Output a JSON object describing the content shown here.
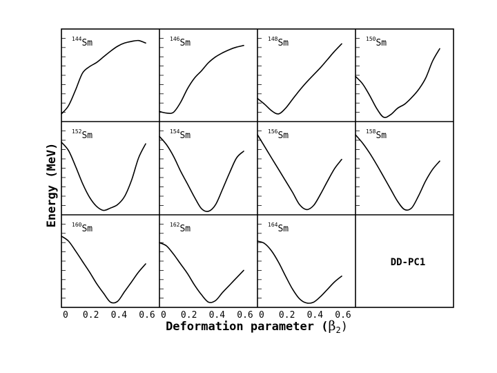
{
  "figure": {
    "ylabel": "Energy (MeV)",
    "xlabel": {
      "text": "Deformation parameter (",
      "greek": "β",
      "sub": "2",
      "close": ")"
    },
    "model_label": "DD-PC1",
    "xticks": [
      "0",
      "0.2",
      "0.4",
      "0.6"
    ]
  },
  "chart_data": {
    "type": "line",
    "grid": "3x4 small multiples, shared axes",
    "xlabel": "Deformation parameter (β2)",
    "ylabel": "Energy (MeV)",
    "xlim": [
      0,
      0.7
    ],
    "x_tick_values": [
      0,
      0.2,
      0.4,
      0.6
    ],
    "ylim": [
      0,
      10
    ],
    "y_tick_labels": "none printed",
    "panels": [
      {
        "mass": "144",
        "element": "Sm",
        "x": [
          0,
          0.05,
          0.1,
          0.15,
          0.2,
          0.25,
          0.3,
          0.35,
          0.4,
          0.45,
          0.5,
          0.55,
          0.6
        ],
        "y": [
          0.6,
          1.6,
          3.5,
          5.6,
          6.4,
          6.9,
          7.6,
          8.3,
          8.9,
          9.3,
          9.5,
          9.6,
          9.3
        ]
      },
      {
        "mass": "146",
        "element": "Sm",
        "x": [
          0,
          0.05,
          0.1,
          0.15,
          0.2,
          0.25,
          0.3,
          0.35,
          0.4,
          0.45,
          0.5,
          0.55,
          0.6
        ],
        "y": [
          0.9,
          0.7,
          0.8,
          2.0,
          3.7,
          5.0,
          5.9,
          6.9,
          7.6,
          8.1,
          8.5,
          8.8,
          9.0
        ]
      },
      {
        "mass": "148",
        "element": "Sm",
        "x": [
          0,
          0.05,
          0.1,
          0.15,
          0.2,
          0.25,
          0.3,
          0.35,
          0.4,
          0.45,
          0.5,
          0.55,
          0.6
        ],
        "y": [
          2.5,
          1.8,
          1.0,
          0.6,
          1.3,
          2.4,
          3.5,
          4.5,
          5.4,
          6.3,
          7.3,
          8.3,
          9.2
        ]
      },
      {
        "mass": "150",
        "element": "Sm",
        "x": [
          0,
          0.05,
          0.1,
          0.15,
          0.2,
          0.25,
          0.3,
          0.35,
          0.4,
          0.45,
          0.5,
          0.55,
          0.6
        ],
        "y": [
          5.2,
          4.3,
          2.9,
          1.3,
          0.2,
          0.5,
          1.3,
          1.8,
          2.6,
          3.6,
          5.0,
          7.1,
          8.6
        ]
      },
      {
        "mass": "152",
        "element": "Sm",
        "x": [
          0,
          0.05,
          0.1,
          0.15,
          0.2,
          0.25,
          0.3,
          0.35,
          0.4,
          0.45,
          0.5,
          0.55,
          0.6
        ],
        "y": [
          8.5,
          7.5,
          5.6,
          3.5,
          1.8,
          0.7,
          0.2,
          0.5,
          0.9,
          1.9,
          3.9,
          6.6,
          8.3
        ]
      },
      {
        "mass": "154",
        "element": "Sm",
        "x": [
          0,
          0.05,
          0.1,
          0.15,
          0.2,
          0.25,
          0.3,
          0.35,
          0.4,
          0.45,
          0.5,
          0.55,
          0.6
        ],
        "y": [
          9.2,
          8.2,
          6.8,
          5.0,
          3.4,
          1.8,
          0.4,
          0.1,
          0.9,
          2.8,
          4.8,
          6.6,
          7.4
        ]
      },
      {
        "mass": "156",
        "element": "Sm",
        "x": [
          0,
          0.05,
          0.1,
          0.15,
          0.2,
          0.25,
          0.3,
          0.35,
          0.4,
          0.45,
          0.5,
          0.55,
          0.6
        ],
        "y": [
          9.4,
          8.0,
          6.6,
          5.2,
          3.8,
          2.4,
          0.9,
          0.3,
          0.8,
          2.2,
          3.8,
          5.3,
          6.4
        ]
      },
      {
        "mass": "158",
        "element": "Sm",
        "x": [
          0,
          0.05,
          0.1,
          0.15,
          0.2,
          0.25,
          0.3,
          0.35,
          0.4,
          0.45,
          0.5,
          0.55,
          0.6
        ],
        "y": [
          9.4,
          8.4,
          7.2,
          5.8,
          4.3,
          2.8,
          1.3,
          0.3,
          0.5,
          2.0,
          3.8,
          5.2,
          6.2
        ]
      },
      {
        "mass": "160",
        "element": "Sm",
        "x": [
          0,
          0.05,
          0.1,
          0.15,
          0.2,
          0.25,
          0.3,
          0.35,
          0.4,
          0.45,
          0.5,
          0.55,
          0.6
        ],
        "y": [
          8.4,
          7.8,
          6.6,
          5.3,
          4.0,
          2.6,
          1.4,
          0.3,
          0.4,
          1.6,
          2.8,
          4.0,
          5.0
        ]
      },
      {
        "mass": "162",
        "element": "Sm",
        "x": [
          0,
          0.05,
          0.1,
          0.15,
          0.2,
          0.25,
          0.3,
          0.35,
          0.4,
          0.45,
          0.5,
          0.55,
          0.6
        ],
        "y": [
          7.6,
          7.2,
          6.2,
          5.0,
          3.8,
          2.4,
          1.2,
          0.3,
          0.5,
          1.5,
          2.4,
          3.3,
          4.2
        ]
      },
      {
        "mass": "164",
        "element": "Sm",
        "x": [
          0,
          0.05,
          0.1,
          0.15,
          0.2,
          0.25,
          0.3,
          0.35,
          0.4,
          0.45,
          0.5,
          0.55,
          0.6
        ],
        "y": [
          7.8,
          7.5,
          6.6,
          5.2,
          3.5,
          1.9,
          0.7,
          0.2,
          0.3,
          1.0,
          1.9,
          2.8,
          3.5
        ]
      }
    ]
  }
}
